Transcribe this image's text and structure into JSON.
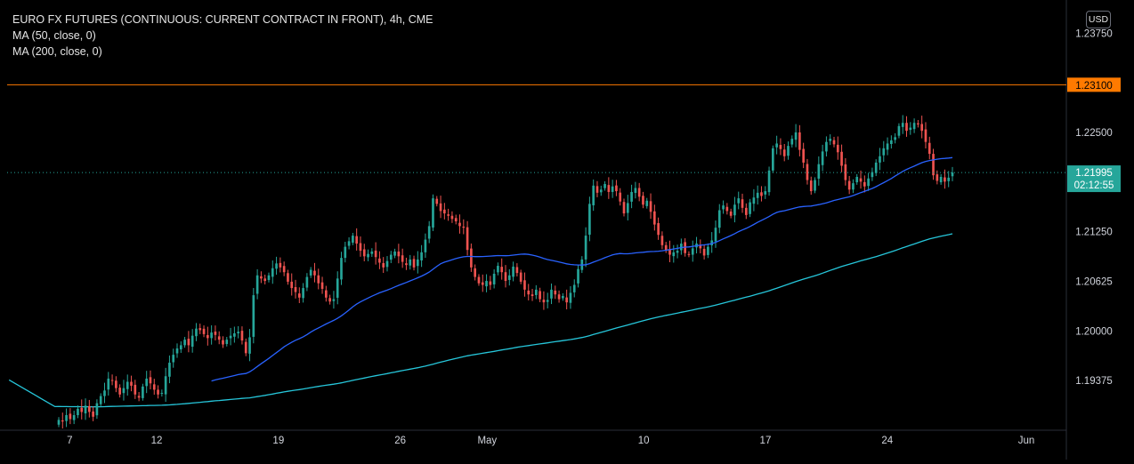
{
  "legend": {
    "title": "EURO FX FUTURES (CONTINUOUS: CURRENT CONTRACT IN FRONT), 4h, CME",
    "ma50": "MA (50, close, 0)",
    "ma200": "MA (200, close, 0)"
  },
  "currency_button": "USD",
  "colors": {
    "up": "#26a69a",
    "down": "#ef5350",
    "ma50": "#2962ff",
    "ma200": "#26c6da",
    "hline": "#ff7a00",
    "price_badge": "#26a69a"
  },
  "chart_data": {
    "type": "candlestick",
    "title": "EURO FX FUTURES (CONTINUOUS: CURRENT CONTRACT IN FRONT), 4h, CME",
    "ylim": [
      1.1875,
      1.241
    ],
    "y_ticks": [
      "1.23750",
      "1.22500",
      "1.21250",
      "1.20625",
      "1.20000",
      "1.19375"
    ],
    "x_ticks": [
      {
        "label": "7",
        "day": 7
      },
      {
        "label": "12",
        "day": 12
      },
      {
        "label": "19",
        "day": 19
      },
      {
        "label": "26",
        "day": 26
      },
      {
        "label": "May",
        "day": 31
      },
      {
        "label": "10",
        "day": 40
      },
      {
        "label": "17",
        "day": 47
      },
      {
        "label": "24",
        "day": 54
      },
      {
        "label": "Jun",
        "day": 62
      }
    ],
    "xlim_days": [
      3.4,
      64.3
    ],
    "horizontal_line": {
      "value": 1.231,
      "label": "1.23100"
    },
    "last_price": {
      "value": 1.21995,
      "label": "1.21995",
      "countdown": "02:12:55"
    },
    "closes": [
      1.1888,
      1.1886,
      1.1894,
      1.1889,
      1.1894,
      1.1902,
      1.1898,
      1.1906,
      1.1898,
      1.1892,
      1.1909,
      1.1918,
      1.1925,
      1.194,
      1.1938,
      1.1928,
      1.192,
      1.1928,
      1.1936,
      1.1931,
      1.192,
      1.1916,
      1.193,
      1.194,
      1.1934,
      1.1926,
      1.192,
      1.1922,
      1.1943,
      1.196,
      1.197,
      1.1978,
      1.1982,
      1.1989,
      1.1982,
      1.1994,
      1.2003,
      1.2001,
      1.1996,
      1.1991,
      1.1998,
      1.1995,
      1.1989,
      1.1983,
      1.1989,
      1.1994,
      1.1997,
      1.1999,
      1.1988,
      1.1972,
      1.1992,
      1.2045,
      1.207,
      1.2066,
      1.2063,
      1.207,
      1.2079,
      1.2085,
      1.208,
      1.2074,
      1.2062,
      1.2054,
      1.2049,
      1.2042,
      1.2054,
      1.2068,
      1.2077,
      1.207,
      1.206,
      1.2053,
      1.2042,
      1.2037,
      1.204,
      1.2066,
      1.2092,
      1.2106,
      1.2113,
      1.212,
      1.211,
      1.2101,
      1.2094,
      1.2097,
      1.21,
      1.2093,
      1.2086,
      1.208,
      1.2088,
      1.2096,
      1.21,
      1.2094,
      1.2087,
      1.2083,
      1.209,
      1.208,
      1.209,
      1.2099,
      1.2115,
      1.2132,
      1.2167,
      1.216,
      1.2151,
      1.2148,
      1.2145,
      1.2141,
      1.2138,
      1.2132,
      1.213,
      1.2102,
      1.208,
      1.2068,
      1.206,
      1.2058,
      1.2063,
      1.2058,
      1.2072,
      1.2082,
      1.2074,
      1.2063,
      1.207,
      1.2081,
      1.2073,
      1.2062,
      1.2052,
      1.2046,
      1.2044,
      1.2052,
      1.204,
      1.2036,
      1.2039,
      1.2052,
      1.2046,
      1.204,
      1.2044,
      1.2036,
      1.2048,
      1.2058,
      1.2078,
      1.209,
      1.212,
      1.216,
      1.2183,
      1.2174,
      1.2178,
      1.2185,
      1.2175,
      1.2182,
      1.2176,
      1.2163,
      1.2148,
      1.2161,
      1.2175,
      1.218,
      1.2169,
      1.2159,
      1.2164,
      1.215,
      1.2134,
      1.2121,
      1.2108,
      1.2102,
      1.2096,
      1.2099,
      1.2101,
      1.211,
      1.2098,
      1.2096,
      1.2104,
      1.211,
      1.2104,
      1.2095,
      1.2106,
      1.2114,
      1.213,
      1.2152,
      1.2158,
      1.2151,
      1.2145,
      1.2159,
      1.2167,
      1.2155,
      1.2146,
      1.2162,
      1.2168,
      1.2174,
      1.217,
      1.2176,
      1.2202,
      1.223,
      1.2236,
      1.2229,
      1.222,
      1.2233,
      1.2242,
      1.225,
      1.2228,
      1.2212,
      1.219,
      1.2176,
      1.219,
      1.221,
      1.2226,
      1.2238,
      1.2242,
      1.2235,
      1.2225,
      1.2208,
      1.219,
      1.2178,
      1.2186,
      1.2194,
      1.2188,
      1.2182,
      1.2192,
      1.22,
      1.2212,
      1.222,
      1.223,
      1.2236,
      1.224,
      1.2244,
      1.2258,
      1.2262,
      1.2252,
      1.2256,
      1.2262,
      1.226,
      1.2252,
      1.2238,
      1.2223,
      1.2196,
      1.2189,
      1.2194,
      1.2188,
      1.2193,
      1.21995
    ]
  }
}
